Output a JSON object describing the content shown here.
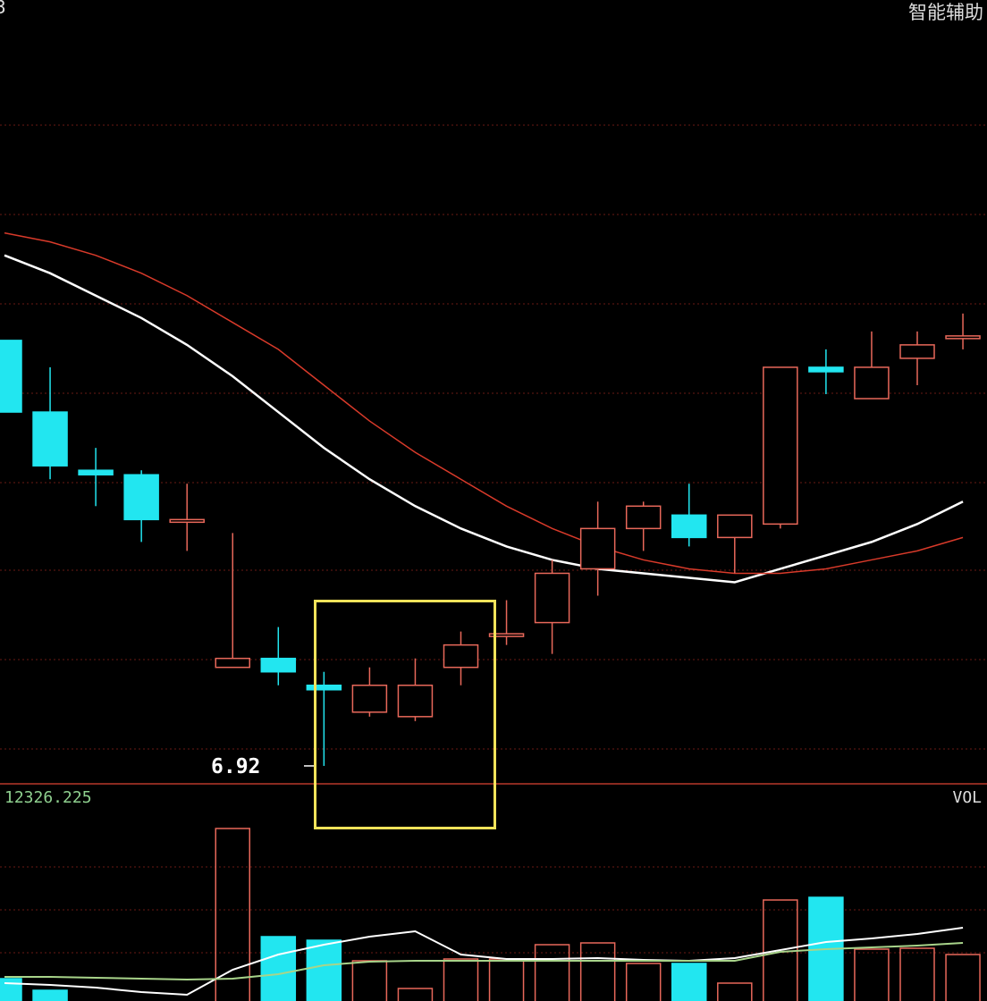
{
  "header": {
    "left_fragment": "3",
    "right_label": "智能辅助"
  },
  "colors": {
    "up": "#e8685a",
    "down": "#22e6f0",
    "ma_fast": "#ffffff",
    "ma_slow": "#d83a2a",
    "grid": "#6a1a14",
    "highlight_box": "#f2e35a",
    "vol_ma1": "#ffffff",
    "vol_ma2": "#a8d48a"
  },
  "chart_data": [
    {
      "type": "candlestick",
      "title": "",
      "grid": true,
      "ylim": [
        6.88,
        8.63
      ],
      "annotations": [
        {
          "text": "6.92",
          "target": "lowest low"
        }
      ],
      "highlight": {
        "from_index": 8,
        "to_index": 11,
        "shape": "rectangle"
      },
      "candles": [
        {
          "open": 7.87,
          "close": 7.71,
          "high": 7.87,
          "low": 7.71
        },
        {
          "open": 7.71,
          "close": 7.59,
          "high": 7.81,
          "low": 7.56
        },
        {
          "open": 7.58,
          "close": 7.57,
          "high": 7.63,
          "low": 7.5
        },
        {
          "open": 7.57,
          "close": 7.47,
          "high": 7.58,
          "low": 7.42
        },
        {
          "open": 7.47,
          "close": 7.47,
          "high": 7.55,
          "low": 7.4
        },
        {
          "open": 7.14,
          "close": 7.16,
          "high": 7.44,
          "low": 7.14
        },
        {
          "open": 7.16,
          "close": 7.13,
          "high": 7.23,
          "low": 7.1
        },
        {
          "open": 7.1,
          "close": 7.09,
          "high": 7.13,
          "low": 6.92
        },
        {
          "open": 7.04,
          "close": 7.1,
          "high": 7.14,
          "low": 7.03
        },
        {
          "open": 7.03,
          "close": 7.1,
          "high": 7.16,
          "low": 7.02
        },
        {
          "open": 7.14,
          "close": 7.19,
          "high": 7.22,
          "low": 7.1
        },
        {
          "open": 7.21,
          "close": 7.215,
          "high": 7.29,
          "low": 7.19
        },
        {
          "open": 7.24,
          "close": 7.35,
          "high": 7.38,
          "low": 7.17
        },
        {
          "open": 7.36,
          "close": 7.45,
          "high": 7.51,
          "low": 7.3
        },
        {
          "open": 7.45,
          "close": 7.5,
          "high": 7.51,
          "low": 7.4
        },
        {
          "open": 7.48,
          "close": 7.43,
          "high": 7.55,
          "low": 7.41
        },
        {
          "open": 7.43,
          "close": 7.48,
          "high": 7.48,
          "low": 7.35
        },
        {
          "open": 7.46,
          "close": 7.81,
          "high": 7.81,
          "low": 7.45
        },
        {
          "open": 7.81,
          "close": 7.8,
          "high": 7.85,
          "low": 7.75
        },
        {
          "open": 7.74,
          "close": 7.81,
          "high": 7.89,
          "low": 7.74
        },
        {
          "open": 7.83,
          "close": 7.86,
          "high": 7.89,
          "low": 7.77
        },
        {
          "open": 7.88,
          "close": 7.88,
          "high": 7.93,
          "low": 7.85
        }
      ],
      "series": [
        {
          "values": [
            8.06,
            8.02,
            7.97,
            7.92,
            7.86,
            7.79,
            7.71,
            7.63,
            7.56,
            7.5,
            7.45,
            7.41,
            7.38,
            7.36,
            7.35,
            7.34,
            7.33,
            7.36,
            7.39,
            7.42,
            7.46,
            7.51
          ]
        },
        {
          "values": [
            8.11,
            8.09,
            8.06,
            8.02,
            7.97,
            7.91,
            7.85,
            7.77,
            7.69,
            7.62,
            7.56,
            7.5,
            7.45,
            7.41,
            7.38,
            7.36,
            7.35,
            7.35,
            7.36,
            7.38,
            7.4,
            7.43
          ]
        }
      ]
    },
    {
      "type": "bar",
      "title": "VOL",
      "max_label": "12326.225",
      "ylim": [
        0,
        12326.225
      ],
      "grid": true,
      "values": [
        1836,
        1154,
        400,
        400,
        400,
        10648,
        4301,
        4091,
        2885,
        1259,
        2990,
        2990,
        3829,
        3934,
        2728,
        2728,
        1574,
        6452,
        6609,
        3567,
        3619,
        3252
      ],
      "series": [
        {
          "values": [
            1574,
            1469,
            1311,
            1049,
            892,
            2360,
            3252,
            3829,
            4301,
            4616,
            3252,
            2990,
            2990,
            3042,
            2937,
            2885,
            3042,
            3514,
            3986,
            4196,
            4458,
            4825
          ]
        },
        {
          "values": [
            1941,
            1941,
            1888,
            1836,
            1783,
            1836,
            2098,
            2623,
            2832,
            2885,
            2885,
            2885,
            2885,
            2885,
            2885,
            2885,
            2885,
            3409,
            3567,
            3672,
            3776,
            3934
          ]
        }
      ]
    }
  ]
}
